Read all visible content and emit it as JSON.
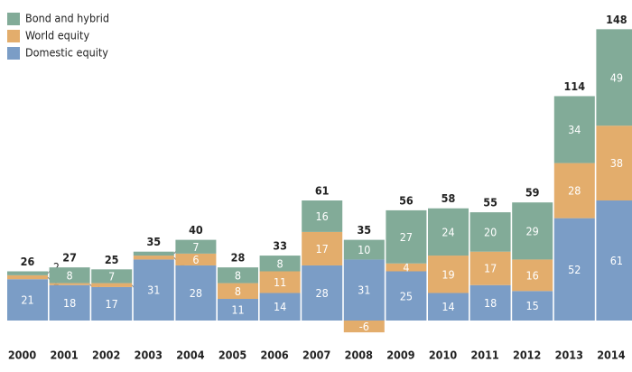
{
  "chart_data": {
    "type": "stacked-bar",
    "categories": [
      "2000",
      "2001",
      "2002",
      "2003",
      "2004",
      "2005",
      "2006",
      "2007",
      "2008",
      "2009",
      "2010",
      "2011",
      "2012",
      "2013",
      "2014"
    ],
    "series": [
      {
        "name": "Domestic equity",
        "color": "#7b9dc6",
        "values": [
          21,
          18,
          17,
          31,
          28,
          11,
          14,
          28,
          31,
          25,
          14,
          18,
          15,
          52,
          61
        ]
      },
      {
        "name": "World equity",
        "color": "#e3ad6c",
        "values": [
          2,
          1,
          2,
          2,
          6,
          8,
          11,
          17,
          -6,
          4,
          19,
          17,
          16,
          28,
          38
        ]
      },
      {
        "name": "Bond and hybrid",
        "color": "#82ab98",
        "values": [
          2,
          8,
          7,
          2,
          7,
          8,
          8,
          16,
          10,
          27,
          24,
          20,
          29,
          34,
          49
        ]
      }
    ],
    "totals": [
      26,
      27,
      25,
      35,
      40,
      28,
      33,
      61,
      35,
      56,
      58,
      55,
      59,
      114,
      148
    ]
  }
}
